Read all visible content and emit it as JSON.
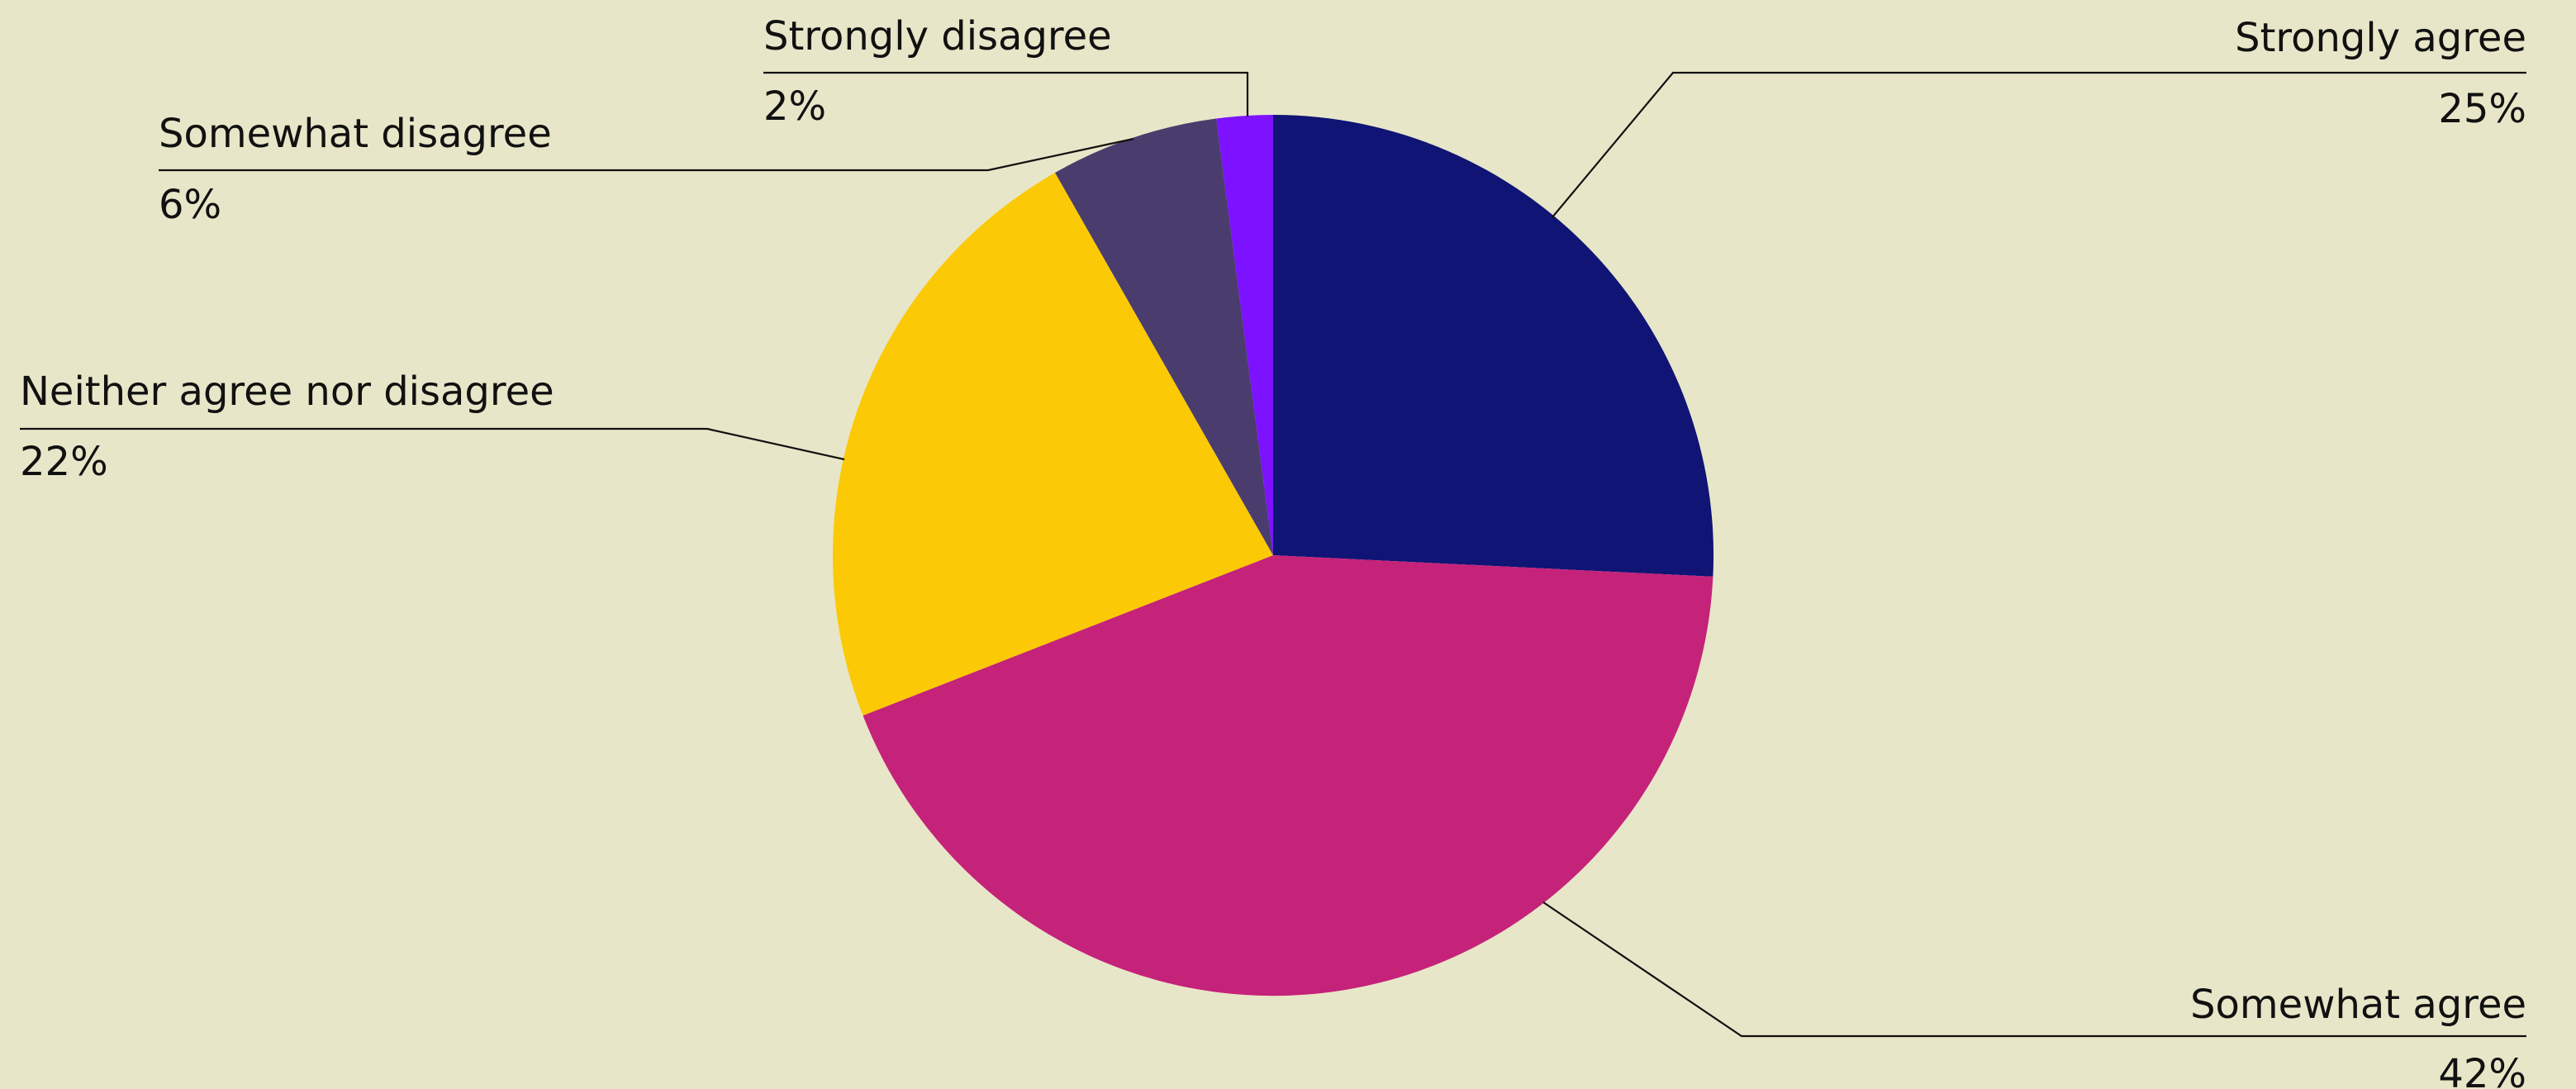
{
  "chart_data": {
    "type": "pie",
    "start_angle_deg": 0,
    "direction": "clockwise",
    "slices": [
      {
        "label": "Strongly agree",
        "value": 25,
        "value_label": "25%",
        "color": "#0f1475"
      },
      {
        "label": "Somewhat agree",
        "value": 42,
        "value_label": "42%",
        "color": "#c5227a"
      },
      {
        "label": "Neither agree nor disagree",
        "value": 22,
        "value_label": "22%",
        "color": "#fbc906"
      },
      {
        "label": "Somewhat disagree",
        "value": 6,
        "value_label": "6%",
        "color": "#4a3c6c"
      },
      {
        "label": "Strongly disagree",
        "value": 2,
        "value_label": "2%",
        "color": "#7c12ff"
      }
    ],
    "legend": "none",
    "background": "#e8e6c8"
  }
}
